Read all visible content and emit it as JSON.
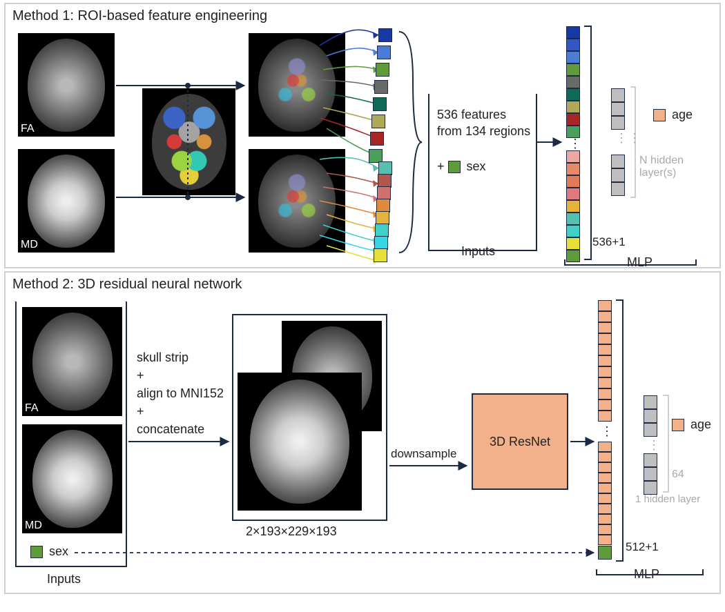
{
  "panel1": {
    "title": "Method 1: ROI-based feature engineering",
    "FA_label": "FA",
    "MD_label": "MD",
    "features_line1": "536 features",
    "features_line2": "from 134 regions",
    "sex_prefix": "+",
    "sex_label": "sex",
    "sex_color": "#5f9b3a",
    "inputs_label": "Inputs",
    "age_label": "age",
    "age_color": "#f2b18a",
    "hidden_label": "N hidden layer(s)",
    "mlp_label": "MLP",
    "vec_count": "536+1",
    "feature_colors_top": [
      "#1838a5",
      "#4b7cd6",
      "#5f9b3a",
      "#6a6a6a",
      "#0f6b55",
      "#b2a85a",
      "#a92626",
      "#4aa05a"
    ],
    "feature_colors_bot": [
      "#55bfb0",
      "#b0564a",
      "#cf726f",
      "#e08a3d",
      "#e6b23a",
      "#3fd0c6",
      "#38d7e6",
      "#e8e03a"
    ],
    "vec_colors_top": [
      "#1838a5",
      "#3257c5",
      "#4b7cd6",
      "#5f9b3a",
      "#6a6a6a",
      "#0f6b55",
      "#b2a85a",
      "#a92626",
      "#4aa05a"
    ],
    "vec_colors_bot": [
      "#f0a6a0",
      "#e88a6a",
      "#e07a5a",
      "#e07a7a",
      "#e6b23a",
      "#55bfb0",
      "#3fd0c6",
      "#e8e03a",
      "#5f9b3a"
    ],
    "hidden_color": "#bfbfbf"
  },
  "panel2": {
    "title": "Method 2: 3D residual neural network",
    "FA_label": "FA",
    "MD_label": "MD",
    "preproc_lines": [
      "skull strip",
      "+",
      "align to MNI152",
      "+",
      "concatenate"
    ],
    "dims_label": "2×193×229×193",
    "downsample_label": "downsample",
    "resnet_label": "3D ResNet",
    "resnet_color": "#f2b18a",
    "sex_label": "sex",
    "sex_color": "#5f9b3a",
    "inputs_label": "Inputs",
    "vec_count": "512+1",
    "age_label": "age",
    "age_color": "#f2b18a",
    "hidden_label": "1 hidden layer",
    "hidden_n": "64",
    "hidden_color": "#bfbfbf",
    "mlp_label": "MLP",
    "vec_box_color": "#f2b18a"
  },
  "colors": {
    "border": "#1d2a44",
    "text": "#222222",
    "gray_text": "#a9a9a9"
  }
}
